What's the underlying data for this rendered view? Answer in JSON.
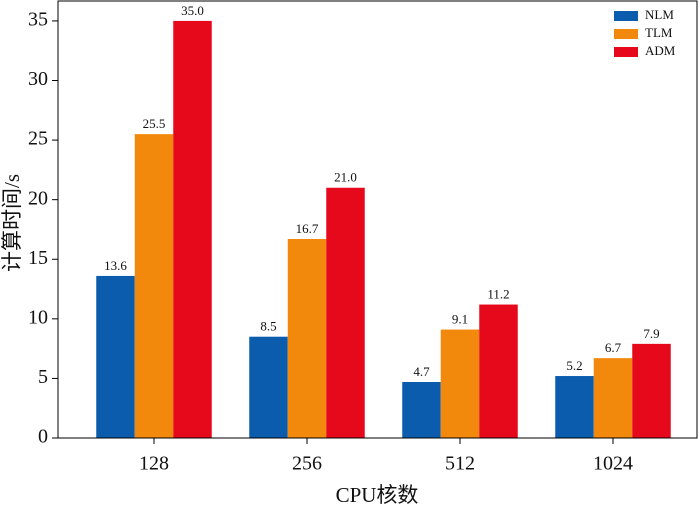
{
  "chart_data": {
    "type": "bar",
    "categories": [
      "128",
      "256",
      "512",
      "1024"
    ],
    "x_label": "CPU核数",
    "y_label": "计算时间/s",
    "series": [
      {
        "name": "NLM",
        "color": "#0b5cad",
        "values": [
          13.6,
          8.5,
          4.7,
          5.2
        ],
        "value_labels": [
          "13.6",
          "8.5",
          "4.7",
          "5.2"
        ]
      },
      {
        "name": "TLM",
        "color": "#f2890d",
        "values": [
          25.5,
          16.7,
          9.1,
          6.7
        ],
        "value_labels": [
          "25.5",
          "16.7",
          "9.1",
          "6.7"
        ]
      },
      {
        "name": "ADM",
        "color": "#e6091b",
        "values": [
          35.0,
          21.0,
          11.2,
          7.9
        ],
        "value_labels": [
          "35.0",
          "21.0",
          "11.2",
          "7.9"
        ]
      }
    ],
    "ylim": [
      0,
      36
    ],
    "yticks": [
      0,
      5,
      10,
      15,
      20,
      25,
      30,
      35
    ],
    "legend": "top-right"
  }
}
